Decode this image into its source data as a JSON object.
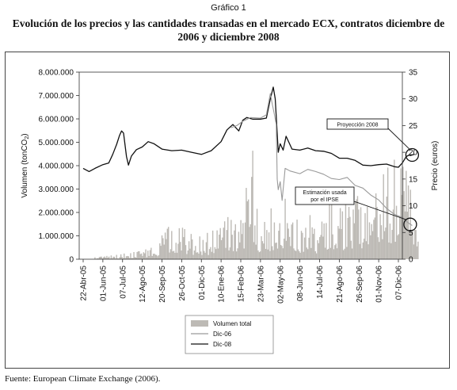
{
  "figure": {
    "label": "Gráfico 1",
    "title": "Evolución de los precios y las cantidades transadas en el mercado ECX, contratos diciembre de 2006 y diciembre 2008",
    "source": "Fuente: European Climate Exchange (2006)."
  },
  "chart_data": {
    "type": "bar+line",
    "y_left": {
      "label": "Volumen (tonCO2)",
      "range": [
        0,
        8000000
      ],
      "ticks": [
        "0",
        "1.000.000",
        "2.000.000",
        "3.000.000",
        "4.000.000",
        "5.000.000",
        "6.000.000",
        "7.000.000",
        "8.000.000"
      ]
    },
    "y_right": {
      "label": "Precio (euros)",
      "range": [
        0,
        35
      ],
      "ticks": [
        "0",
        "5",
        "10",
        "15",
        "20",
        "25",
        "30",
        "35"
      ]
    },
    "x_ticks": [
      "22-Abr-05",
      "01-Jun-05",
      "07-Jul-05",
      "12-Ago-05",
      "20-Sep-05",
      "26-Oct-05",
      "01-Dic-05",
      "10-Ene-06",
      "15-Feb-06",
      "23-Mar-06",
      "02-May-06",
      "08-Jun-06",
      "14-Jul-06",
      "21-Ago-06",
      "26-Sep-06",
      "01-Nov-06",
      "07-Dic-06"
    ],
    "grid": false,
    "legend_position": "bottom-center",
    "legend": [
      {
        "name": "Volumen total",
        "color": "#bdbab5",
        "kind": "bar"
      },
      {
        "name": "Dic-06",
        "color": "#9a9a9a",
        "kind": "line"
      },
      {
        "name": "Dic-08",
        "color": "#111111",
        "kind": "line"
      }
    ],
    "annotations": [
      {
        "text": "Proyección 2008",
        "at": {
          "x_index": 16.7,
          "price": 19.5
        }
      },
      {
        "text": "Estimación usada por el IPSE",
        "at": {
          "x_index": 16.6,
          "price": 6.5
        }
      }
    ],
    "series": [
      {
        "name": "Dic-08",
        "axis": "right",
        "points": [
          [
            0,
            17.0
          ],
          [
            0.3,
            16.4
          ],
          [
            0.6,
            17.0
          ],
          [
            1.0,
            17.7
          ],
          [
            1.3,
            18.0
          ],
          [
            1.5,
            19.6
          ],
          [
            1.7,
            21.5
          ],
          [
            1.85,
            23.2
          ],
          [
            1.95,
            24.0
          ],
          [
            2.05,
            23.6
          ],
          [
            2.2,
            19.2
          ],
          [
            2.3,
            17.6
          ],
          [
            2.45,
            19.3
          ],
          [
            2.7,
            20.5
          ],
          [
            3.0,
            21.0
          ],
          [
            3.3,
            22.0
          ],
          [
            3.6,
            21.6
          ],
          [
            4.0,
            20.6
          ],
          [
            4.5,
            20.3
          ],
          [
            5.0,
            20.4
          ],
          [
            5.5,
            20.0
          ],
          [
            6.0,
            19.6
          ],
          [
            6.5,
            20.3
          ],
          [
            7.0,
            22.0
          ],
          [
            7.3,
            24.2
          ],
          [
            7.6,
            25.2
          ],
          [
            7.9,
            24.0
          ],
          [
            8.1,
            26.0
          ],
          [
            8.3,
            26.5
          ],
          [
            8.6,
            26.2
          ],
          [
            9.0,
            26.2
          ],
          [
            9.3,
            26.4
          ],
          [
            9.5,
            30.0
          ],
          [
            9.65,
            32.2
          ],
          [
            9.75,
            30.0
          ],
          [
            9.85,
            23.5
          ],
          [
            9.9,
            20.0
          ],
          [
            10.0,
            21.6
          ],
          [
            10.15,
            20.4
          ],
          [
            10.3,
            23.0
          ],
          [
            10.6,
            20.6
          ],
          [
            11.0,
            20.4
          ],
          [
            11.4,
            20.8
          ],
          [
            11.8,
            20.3
          ],
          [
            12.2,
            20.2
          ],
          [
            12.6,
            19.8
          ],
          [
            13.0,
            18.9
          ],
          [
            13.4,
            18.9
          ],
          [
            13.8,
            18.5
          ],
          [
            14.2,
            17.6
          ],
          [
            14.6,
            17.5
          ],
          [
            15.0,
            17.7
          ],
          [
            15.4,
            17.8
          ],
          [
            15.8,
            17.3
          ],
          [
            16.0,
            17.2
          ],
          [
            16.2,
            18.0
          ],
          [
            16.4,
            19.2
          ],
          [
            16.55,
            19.5
          ],
          [
            16.6,
            19.4
          ],
          [
            16.8,
            19.6
          ]
        ]
      },
      {
        "name": "Dic-06",
        "axis": "right",
        "points": [
          [
            7.5,
            24.6
          ],
          [
            7.8,
            25.0
          ],
          [
            8.1,
            25.8
          ],
          [
            8.5,
            26.5
          ],
          [
            9.0,
            26.4
          ],
          [
            9.3,
            27.0
          ],
          [
            9.5,
            31.0
          ],
          [
            9.6,
            29.0
          ],
          [
            9.7,
            27.2
          ],
          [
            9.8,
            25.2
          ],
          [
            9.85,
            15.0
          ],
          [
            9.9,
            13.0
          ],
          [
            10.0,
            14.5
          ],
          [
            10.1,
            11.0
          ],
          [
            10.25,
            17.0
          ],
          [
            10.5,
            16.5
          ],
          [
            11.0,
            16.0
          ],
          [
            11.4,
            16.8
          ],
          [
            11.8,
            16.4
          ],
          [
            12.2,
            15.9
          ],
          [
            12.6,
            15.1
          ],
          [
            13.0,
            14.9
          ],
          [
            13.4,
            15.3
          ],
          [
            13.8,
            13.8
          ],
          [
            14.2,
            13.3
          ],
          [
            14.6,
            12.0
          ],
          [
            15.0,
            11.1
          ],
          [
            15.4,
            9.5
          ],
          [
            15.8,
            8.4
          ],
          [
            16.2,
            7.8
          ],
          [
            16.5,
            6.8
          ],
          [
            16.7,
            6.3
          ]
        ]
      },
      {
        "name": "Volumen total",
        "axis": "left",
        "kind": "bars",
        "peaks": [
          [
            0.7,
            100000
          ],
          [
            1.8,
            200000
          ],
          [
            2.8,
            350000
          ],
          [
            3.4,
            600000
          ],
          [
            3.9,
            700000
          ],
          [
            4.3,
            2050000
          ],
          [
            4.6,
            800000
          ],
          [
            4.9,
            1800000
          ],
          [
            5.5,
            1200000
          ],
          [
            6.0,
            1100000
          ],
          [
            6.4,
            1200000
          ],
          [
            6.8,
            1500000
          ],
          [
            7.1,
            1700000
          ],
          [
            7.5,
            2500000
          ],
          [
            7.8,
            1800000
          ],
          [
            8.2,
            2900000
          ],
          [
            8.6,
            5000000
          ],
          [
            9.0,
            1400000
          ],
          [
            9.3,
            1700000
          ],
          [
            9.7,
            2700000
          ],
          [
            10.0,
            3200000
          ],
          [
            10.5,
            2900000
          ],
          [
            11.0,
            1700000
          ],
          [
            11.5,
            2100000
          ],
          [
            12.0,
            1400000
          ],
          [
            12.6,
            3100000
          ],
          [
            13.0,
            2200000
          ],
          [
            13.6,
            2600000
          ],
          [
            14.3,
            3000000
          ],
          [
            14.6,
            2500000
          ],
          [
            15.1,
            3400000
          ],
          [
            15.6,
            4300000
          ],
          [
            15.9,
            5100000
          ],
          [
            16.3,
            3900000
          ],
          [
            16.8,
            3500000
          ]
        ]
      }
    ]
  }
}
